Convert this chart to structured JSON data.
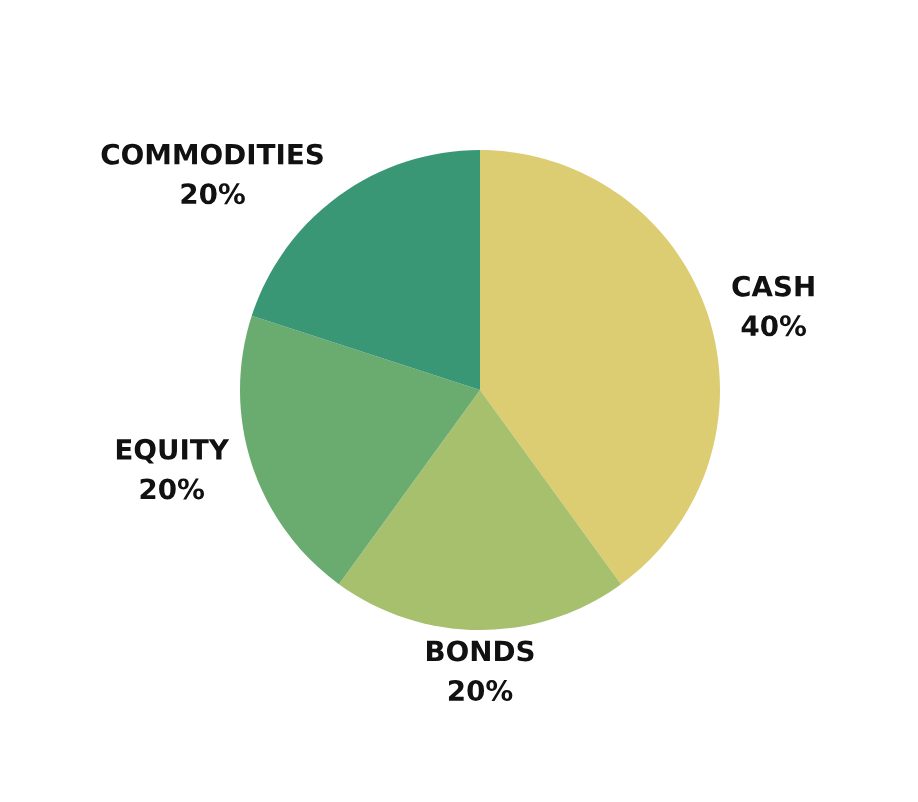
{
  "chart_data": {
    "type": "pie",
    "categories": [
      "CASH",
      "BONDS",
      "EQUITY",
      "COMMODITIES"
    ],
    "values": [
      40,
      20,
      20,
      20
    ],
    "value_labels": [
      "40%",
      "20%",
      "20%",
      "20%"
    ],
    "colors": [
      "#dccd72",
      "#a6c06e",
      "#6aab6f",
      "#3a9776"
    ],
    "legend": false
  }
}
